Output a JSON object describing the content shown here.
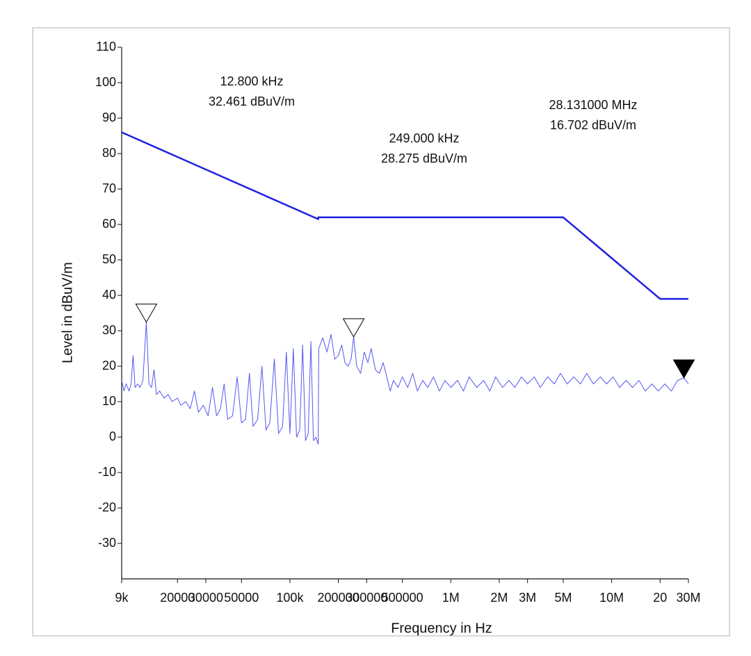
{
  "chart_data": {
    "type": "line",
    "xlabel": "Frequency in Hz",
    "ylabel": "Level in dBuV/m",
    "xscale": "log",
    "xlim": [
      9000,
      30000000
    ],
    "ylim": [
      -40,
      110
    ],
    "xticks": [
      {
        "value": 9000,
        "label": "9k"
      },
      20000,
      30000,
      50000,
      {
        "value": 100000,
        "label": "100k"
      },
      200000,
      300000,
      500000,
      {
        "value": 1000000,
        "label": "1M"
      },
      {
        "value": 2000000,
        "label": "2M"
      },
      {
        "value": 3000000,
        "label": "3M"
      },
      {
        "value": 5000000,
        "label": "5M"
      },
      {
        "value": 10000000,
        "label": "10M"
      },
      {
        "value": 20000000,
        "label": "20"
      },
      {
        "value": 30000000,
        "label": "30M"
      }
    ],
    "yticks": [
      110,
      100,
      90,
      80,
      70,
      60,
      50,
      40,
      30,
      20,
      10,
      0,
      -10,
      -20,
      -30
    ],
    "series": [
      {
        "color": "#1f1fe0",
        "width": 2.5,
        "x": [
          9000,
          150000,
          150000,
          5000000,
          20000000,
          30000000
        ],
        "values": [
          86,
          61.5,
          62,
          62,
          39,
          39
        ]
      },
      {
        "color": "#5555f2",
        "width": 1,
        "x": [
          9000,
          9300,
          9600,
          10000,
          10300,
          10600,
          10900,
          11300,
          11700,
          12200,
          12800,
          13300,
          13800,
          14300,
          14800,
          15500,
          16500,
          17500,
          18500,
          20000,
          21000,
          22500,
          24000,
          25500,
          27000,
          29000,
          31000,
          33000,
          35000,
          37000,
          39000,
          41000,
          44000,
          47000,
          50000,
          53000,
          56000,
          59000,
          63000,
          67000,
          71000,
          75000,
          80000,
          85000,
          90000,
          95000,
          100000,
          105000,
          110000,
          115000,
          120000,
          125000,
          130000,
          135000,
          140000,
          145000,
          150000,
          151000,
          160000,
          170000,
          180000,
          190000,
          200000,
          210000,
          220000,
          230000,
          240000,
          249000,
          260000,
          275000,
          290000,
          305000,
          320000,
          340000,
          360000,
          380000,
          400000,
          420000,
          440000,
          470000,
          500000,
          540000,
          580000,
          620000,
          670000,
          720000,
          780000,
          850000,
          920000,
          1000000,
          1100000,
          1200000,
          1300000,
          1450000,
          1600000,
          1750000,
          1900000,
          2100000,
          2300000,
          2500000,
          2750000,
          3000000,
          3300000,
          3600000,
          4000000,
          4400000,
          4800000,
          5300000,
          5800000,
          6400000,
          7000000,
          7700000,
          8500000,
          9300000,
          10200000,
          11200000,
          12300000,
          13500000,
          14800000,
          16200000,
          17800000,
          19500000,
          21400000,
          23500000,
          25700000,
          28131000,
          30000000
        ],
        "values": [
          16,
          13,
          15,
          13,
          15,
          23,
          14,
          15,
          14,
          16,
          32.461,
          15,
          14,
          19,
          12,
          13,
          11,
          12,
          10,
          11,
          9,
          10,
          8,
          13,
          7,
          9,
          6,
          14,
          6,
          8,
          15,
          5,
          6,
          17,
          4,
          5,
          18,
          3,
          5,
          20,
          2,
          4,
          22,
          1,
          3,
          24,
          1,
          25,
          0,
          2,
          26,
          -1,
          1,
          27,
          -1,
          0,
          -2,
          25,
          28,
          24,
          29,
          22,
          23,
          26,
          21,
          20,
          22,
          28.275,
          20,
          18,
          24,
          21,
          25,
          19,
          18,
          21,
          17,
          13,
          16,
          14,
          17,
          14,
          18,
          13,
          16,
          14,
          17,
          13,
          16,
          14,
          16,
          13,
          17,
          14,
          16,
          13,
          17,
          14,
          16,
          14,
          17,
          15,
          17,
          14,
          17,
          15,
          18,
          15,
          17,
          15,
          18,
          15,
          17,
          15,
          17,
          14,
          16,
          14,
          16,
          13,
          15,
          13,
          15,
          13,
          16,
          16.702,
          15
        ]
      }
    ],
    "markers": [
      {
        "x": 12800,
        "value": 32.461,
        "label": "12.800 kHz",
        "value_label": "32.461 dBuV/m",
        "filled": false
      },
      {
        "x": 249000,
        "value": 28.275,
        "label": "249.000 kHz",
        "value_label": "28.275 dBuV/m",
        "filled": false
      },
      {
        "x": 28131000,
        "value": 16.702,
        "label": "28.131000 MHz",
        "value_label": "16.702 dBuV/m",
        "filled": true
      }
    ]
  }
}
